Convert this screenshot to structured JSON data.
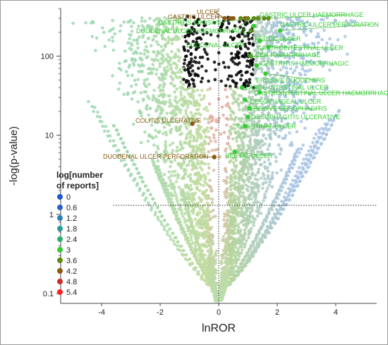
{
  "chart_data": {
    "type": "scatter",
    "title": "",
    "xlabel": "lnROR",
    "ylabel": "-log(p-value)",
    "xlim": [
      -5.4,
      5.4
    ],
    "ylim": [
      0.075,
      400
    ],
    "yscale": "log",
    "x_ticks": [
      "-4",
      "-2",
      "0",
      "2",
      "4"
    ],
    "y_ticks": [
      "0.1",
      "1",
      "10",
      "100"
    ],
    "significance_threshold": 1.3,
    "grid": false,
    "legend": {
      "title_line1": "log[number",
      "title_line2": "of reports]",
      "placement": "lower-left",
      "entries": [
        {
          "label": "0",
          "color": "#1f55d8"
        },
        {
          "label": "0.6",
          "color": "#2a5fc8"
        },
        {
          "label": "1.2",
          "color": "#2d7fb8"
        },
        {
          "label": "1.8",
          "color": "#2a9a9a"
        },
        {
          "label": "2.4",
          "color": "#2fae6a"
        },
        {
          "label": "3",
          "color": "#33cc33"
        },
        {
          "label": "3.6",
          "color": "#5e8a12"
        },
        {
          "label": "4.2",
          "color": "#8a5a10"
        },
        {
          "label": "4.8",
          "color": "#d02a2a"
        },
        {
          "label": "5.4",
          "color": "#ff2020"
        }
      ]
    },
    "labeled_points": [
      {
        "label": "ULCER",
        "x": 0.2,
        "y": 300,
        "color": "#8a5a10"
      },
      {
        "label": "GASTRIC ULCER",
        "x": 0.5,
        "y": 300,
        "color": "#8a5a10"
      },
      {
        "label": "GASTRITIS EROSIVE",
        "x": 1.0,
        "y": 300,
        "color": "#5e8a12"
      },
      {
        "label": "DUODENAL ULCER HAEMORRHAGE",
        "x": 1.2,
        "y": 300,
        "color": "#5e8a12"
      },
      {
        "label": "GASTRIC ULCER HAEMORRHAGE",
        "x": 1.7,
        "y": 300,
        "color": "#5e8a12"
      },
      {
        "label": "GASTRIC ULCER PERFORATION",
        "x": 2.1,
        "y": 210,
        "color": "#33cc33"
      },
      {
        "label": "DUODENAL ULCER",
        "x": 1.1,
        "y": 210,
        "color": "#5e8a12"
      },
      {
        "label": "PEPTIC ULCER",
        "x": 1.4,
        "y": 155,
        "color": "#33cc33"
      },
      {
        "label": "GASTROINTESTINAL ULCER",
        "x": 1.7,
        "y": 130,
        "color": "#33cc33"
      },
      {
        "label": "ULCER HAEMORRHAGE",
        "x": 1.1,
        "y": 100,
        "color": "#5e8a12"
      },
      {
        "label": "GASTRITIS HAEMORRHAGIC",
        "x": 1.3,
        "y": 76,
        "color": "#33cc33"
      },
      {
        "label": "EROSIVE DUODENITIS",
        "x": 1.6,
        "y": 60,
        "color": "#33cc33"
      },
      {
        "label": "LARGE INTESTINAL ULCER",
        "x": 0.8,
        "y": 40,
        "color": "#33cc33"
      },
      {
        "label": "GASTROINTESTINAL ULCER HAEMORRHAGE",
        "x": 1.4,
        "y": 35,
        "color": "#33cc33"
      },
      {
        "label": "OESOPHAGEAL ULCER",
        "x": 0.9,
        "y": 28,
        "color": "#33cc33"
      },
      {
        "label": "EROSIVE OESOPHAGITIS",
        "x": 1.05,
        "y": 22,
        "color": "#33cc33"
      },
      {
        "label": "OESOPHAGITIS ULCERATIVE",
        "x": 1.0,
        "y": 17,
        "color": "#33cc33"
      },
      {
        "label": "INTESTINAL ULCER",
        "x": 0.9,
        "y": 13,
        "color": "#33cc33"
      },
      {
        "label": "COLITIS ULCERATIVE",
        "x": -0.9,
        "y": 14,
        "color": "#8a5a10"
      },
      {
        "label": "RECTAL ULCER",
        "x": 0.55,
        "y": 6.2,
        "color": "#33cc33"
      },
      {
        "label": "DUODENAL ULCER PERFORATION",
        "x": -0.15,
        "y": 5.3,
        "color": "#8a5a10"
      }
    ]
  }
}
